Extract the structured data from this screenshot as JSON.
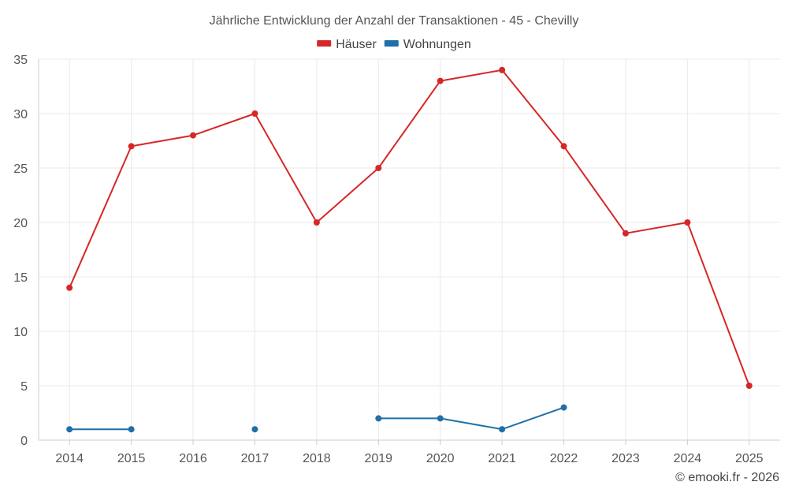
{
  "chart_data": {
    "type": "line",
    "title": "Jährliche Entwicklung der Anzahl der Transaktionen - 45 - Chevilly",
    "categories": [
      "2014",
      "2015",
      "2016",
      "2017",
      "2018",
      "2019",
      "2020",
      "2021",
      "2022",
      "2023",
      "2024",
      "2025"
    ],
    "ylim": [
      0,
      35
    ],
    "yticks": [
      0,
      5,
      10,
      15,
      20,
      25,
      30,
      35
    ],
    "grid": true,
    "legend_position": "top-center",
    "series": [
      {
        "name": "Häuser",
        "color": "#d62728",
        "values": [
          14,
          27,
          28,
          30,
          20,
          25,
          33,
          34,
          27,
          19,
          20,
          5
        ]
      },
      {
        "name": "Wohnungen",
        "color": "#1f6fa8",
        "values": [
          1,
          1,
          null,
          1,
          null,
          2,
          2,
          1,
          3,
          null,
          null,
          null
        ]
      }
    ],
    "credit": "© emooki.fr - 2026"
  }
}
